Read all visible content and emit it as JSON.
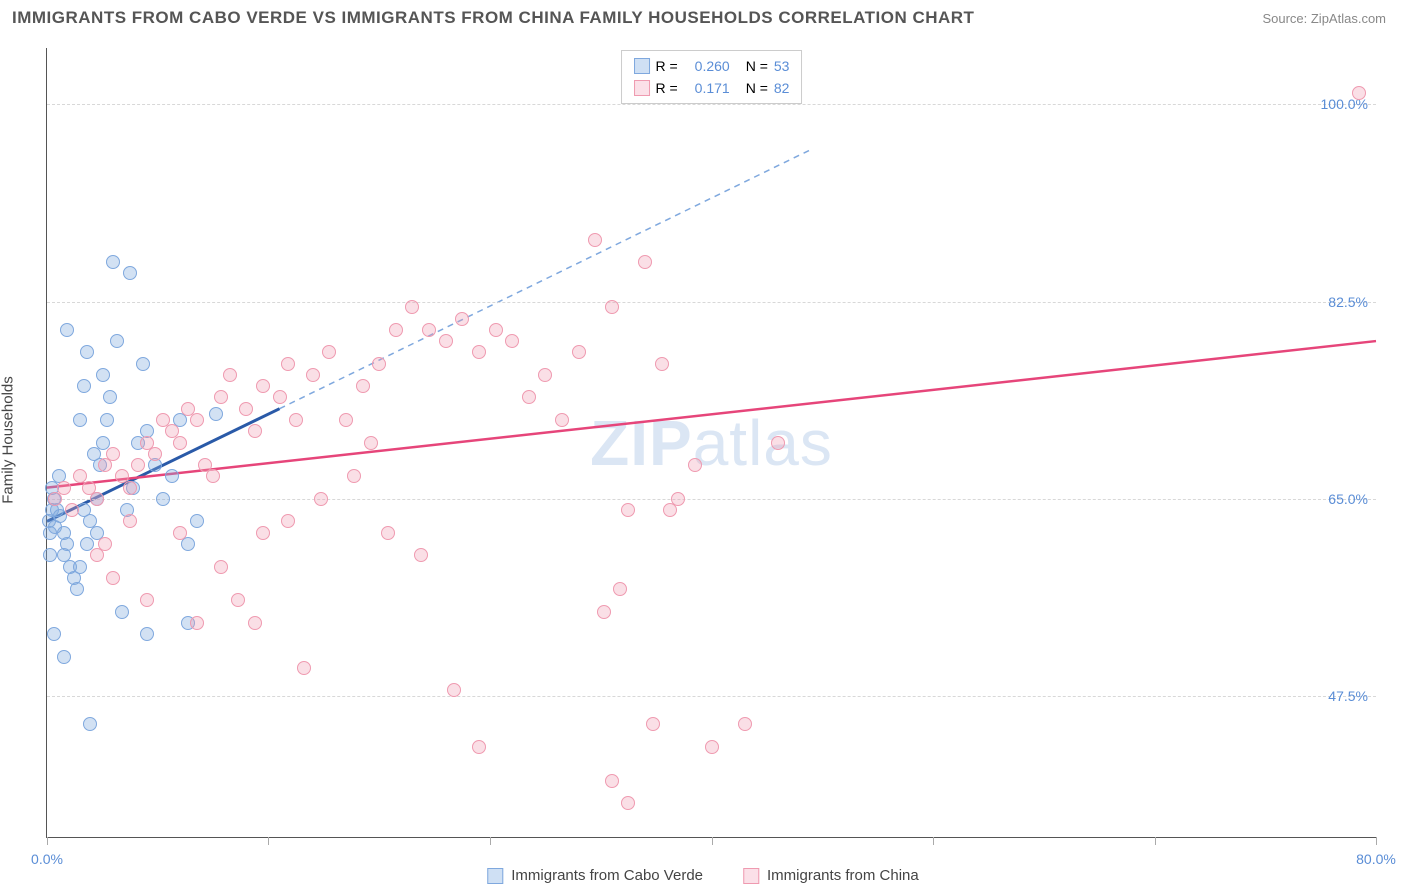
{
  "title": "IMMIGRANTS FROM CABO VERDE VS IMMIGRANTS FROM CHINA FAMILY HOUSEHOLDS CORRELATION CHART",
  "source": "Source: ZipAtlas.com",
  "ylabel": "Family Households",
  "watermark_left": "ZIP",
  "watermark_right": "atlas",
  "chart": {
    "type": "scatter",
    "xlim": [
      0,
      80
    ],
    "ylim": [
      35,
      105
    ],
    "xtick_positions": [
      0,
      13.33,
      26.67,
      40,
      53.33,
      66.67,
      80
    ],
    "xtick_labels": {
      "0": "0.0%",
      "80": "80.0%"
    },
    "ytick_positions": [
      47.5,
      65.0,
      82.5,
      100.0
    ],
    "ytick_labels": [
      "47.5%",
      "65.0%",
      "82.5%",
      "100.0%"
    ],
    "grid_color": "#d8d8d8",
    "background_color": "#ffffff",
    "marker_radius": 7,
    "marker_stroke_width": 1.5,
    "series": [
      {
        "name": "Immigrants from Cabo Verde",
        "color_fill": "rgba(127,168,222,0.35)",
        "color_stroke": "#7fa8de",
        "legend_swatch_fill": "#cfe0f4",
        "legend_swatch_stroke": "#7fa8de",
        "r_label": "R =",
        "r_value": "0.260",
        "n_label": "N =",
        "n_value": "53",
        "trend": {
          "x1": 0,
          "y1": 63,
          "x2": 14,
          "y2": 73,
          "extend_x": 46,
          "extend_y": 96,
          "solid_color": "#2a5aa8",
          "solid_width": 3,
          "dash_color": "#7fa8de",
          "dash_width": 1.5,
          "dash": "6,5"
        },
        "points": [
          [
            0.1,
            63
          ],
          [
            0.3,
            64
          ],
          [
            0.2,
            62
          ],
          [
            0.5,
            62.5
          ],
          [
            0.4,
            65
          ],
          [
            0.3,
            66
          ],
          [
            0.6,
            64
          ],
          [
            0.7,
            67
          ],
          [
            0.8,
            63.5
          ],
          [
            0.2,
            60
          ],
          [
            1.0,
            62
          ],
          [
            1.2,
            61
          ],
          [
            1.0,
            60
          ],
          [
            1.4,
            59
          ],
          [
            1.6,
            58
          ],
          [
            1.8,
            57
          ],
          [
            2.0,
            59
          ],
          [
            2.2,
            64
          ],
          [
            2.4,
            61
          ],
          [
            2.6,
            63
          ],
          [
            3.0,
            62
          ],
          [
            3.2,
            68
          ],
          [
            3.4,
            70
          ],
          [
            3.6,
            72
          ],
          [
            3.4,
            76
          ],
          [
            3.8,
            74
          ],
          [
            2.0,
            72
          ],
          [
            2.2,
            75
          ],
          [
            2.4,
            78
          ],
          [
            1.2,
            80
          ],
          [
            4.0,
            86
          ],
          [
            5.0,
            85
          ],
          [
            5.5,
            70
          ],
          [
            6.0,
            71
          ],
          [
            6.5,
            68
          ],
          [
            7.0,
            65
          ],
          [
            7.5,
            67
          ],
          [
            8.0,
            72
          ],
          [
            8.5,
            61
          ],
          [
            9.0,
            63
          ],
          [
            4.5,
            55
          ],
          [
            1.0,
            51
          ],
          [
            2.6,
            45
          ],
          [
            6.0,
            53
          ],
          [
            8.5,
            54
          ],
          [
            0.4,
            53
          ],
          [
            10.2,
            72.5
          ],
          [
            5.8,
            77
          ],
          [
            4.2,
            79
          ],
          [
            3.0,
            65
          ],
          [
            2.8,
            69
          ],
          [
            4.8,
            64
          ],
          [
            5.2,
            66
          ]
        ]
      },
      {
        "name": "Immigrants from China",
        "color_fill": "rgba(239,154,176,0.32)",
        "color_stroke": "#ef9ab0",
        "legend_swatch_fill": "#fbe0e8",
        "legend_swatch_stroke": "#ef9ab0",
        "r_label": "R =",
        "r_value": "0.171",
        "n_label": "N =",
        "n_value": "82",
        "trend": {
          "x1": 0,
          "y1": 66,
          "x2": 80,
          "y2": 79,
          "solid_color": "#e6457a",
          "solid_width": 2.5
        },
        "points": [
          [
            0.5,
            65
          ],
          [
            1.0,
            66
          ],
          [
            1.5,
            64
          ],
          [
            2.0,
            67
          ],
          [
            2.5,
            66
          ],
          [
            3.0,
            65
          ],
          [
            3.5,
            68
          ],
          [
            4.0,
            69
          ],
          [
            4.5,
            67
          ],
          [
            5.0,
            66
          ],
          [
            5.5,
            68
          ],
          [
            6.0,
            70
          ],
          [
            6.5,
            69
          ],
          [
            7.0,
            72
          ],
          [
            7.5,
            71
          ],
          [
            8.0,
            70
          ],
          [
            8.5,
            73
          ],
          [
            9.0,
            72
          ],
          [
            9.5,
            68
          ],
          [
            10.0,
            67
          ],
          [
            10.5,
            74
          ],
          [
            11.0,
            76
          ],
          [
            12.0,
            73
          ],
          [
            12.5,
            71
          ],
          [
            13.0,
            75
          ],
          [
            14.0,
            74
          ],
          [
            14.5,
            77
          ],
          [
            15.0,
            72
          ],
          [
            16.0,
            76
          ],
          [
            17.0,
            78
          ],
          [
            18.0,
            72
          ],
          [
            19.0,
            75
          ],
          [
            20.0,
            77
          ],
          [
            21.0,
            80
          ],
          [
            22.0,
            82
          ],
          [
            23.0,
            80
          ],
          [
            24.0,
            79
          ],
          [
            25.0,
            81
          ],
          [
            26.0,
            78
          ],
          [
            27.0,
            80
          ],
          [
            28.0,
            79
          ],
          [
            30.0,
            76
          ],
          [
            32.0,
            78
          ],
          [
            33.0,
            88
          ],
          [
            36.0,
            86
          ],
          [
            38.0,
            65
          ],
          [
            39.0,
            68
          ],
          [
            35.0,
            64
          ],
          [
            33.5,
            55
          ],
          [
            34.5,
            57
          ],
          [
            36.5,
            45
          ],
          [
            37.5,
            64
          ],
          [
            40.0,
            43
          ],
          [
            42.0,
            45
          ],
          [
            44.0,
            70
          ],
          [
            79.0,
            101
          ],
          [
            3.0,
            60
          ],
          [
            4.0,
            58
          ],
          [
            6.0,
            56
          ],
          [
            9.0,
            54
          ],
          [
            10.5,
            59
          ],
          [
            11.5,
            56
          ],
          [
            12.5,
            54
          ],
          [
            15.5,
            50
          ],
          [
            24.5,
            48
          ],
          [
            26.0,
            43
          ],
          [
            34.0,
            40
          ],
          [
            35.0,
            38
          ],
          [
            13.0,
            62
          ],
          [
            14.5,
            63
          ],
          [
            16.5,
            65
          ],
          [
            18.5,
            67
          ],
          [
            20.5,
            62
          ],
          [
            22.5,
            60
          ],
          [
            8.0,
            62
          ],
          [
            5.0,
            63
          ],
          [
            3.5,
            61
          ],
          [
            34,
            82
          ],
          [
            37,
            77
          ],
          [
            29,
            74
          ],
          [
            31,
            72
          ],
          [
            19.5,
            70
          ]
        ]
      }
    ]
  },
  "legend_bottom": [
    {
      "swatch_fill": "#cfe0f4",
      "swatch_stroke": "#7fa8de",
      "label": "Immigrants from Cabo Verde"
    },
    {
      "swatch_fill": "#fbe0e8",
      "swatch_stroke": "#ef9ab0",
      "label": "Immigrants from China"
    }
  ]
}
